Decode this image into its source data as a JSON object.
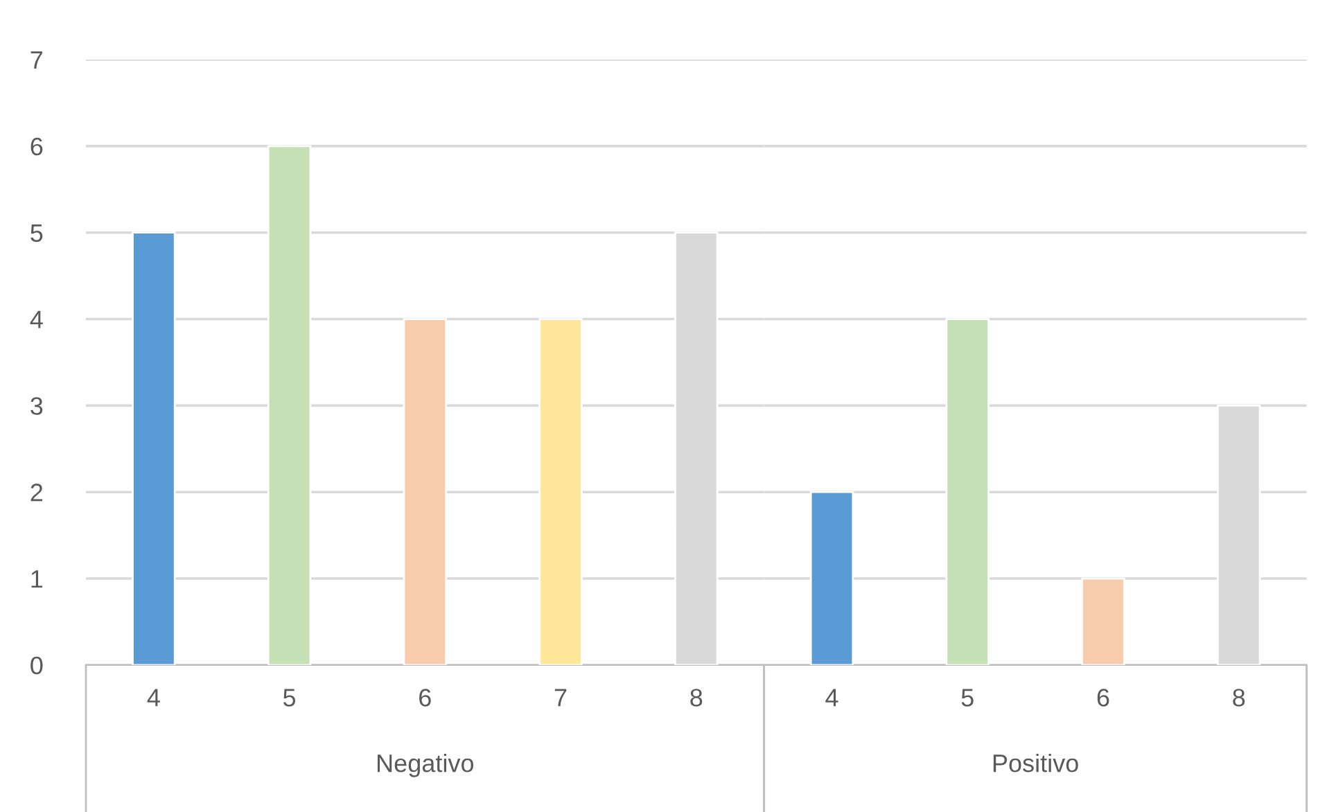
{
  "chart_data": [
    {
      "type": "bar",
      "xlabel": "Negativo",
      "categories": [
        "4",
        "5",
        "6",
        "7",
        "8"
      ],
      "values": [
        5,
        6,
        4,
        4,
        5
      ],
      "colors": [
        "#5b9bd5",
        "#c5e0b4",
        "#f8cbad",
        "#ffe699",
        "#d9d9d9"
      ],
      "ylim": [
        0,
        7
      ],
      "yticks": [
        0,
        1,
        2,
        3,
        4,
        5,
        6,
        7
      ],
      "grid": "y"
    },
    {
      "type": "bar",
      "xlabel": "Positivo",
      "categories": [
        "4",
        "5",
        "6",
        "8"
      ],
      "values": [
        2,
        4,
        1,
        3
      ],
      "colors": [
        "#5b9bd5",
        "#c5e0b4",
        "#f8cbad",
        "#d9d9d9"
      ],
      "ylim": [
        0,
        7
      ],
      "yticks": [
        0,
        1,
        2,
        3,
        4,
        5,
        6,
        7
      ],
      "grid": "y",
      "tick_labels": "x"
    }
  ]
}
